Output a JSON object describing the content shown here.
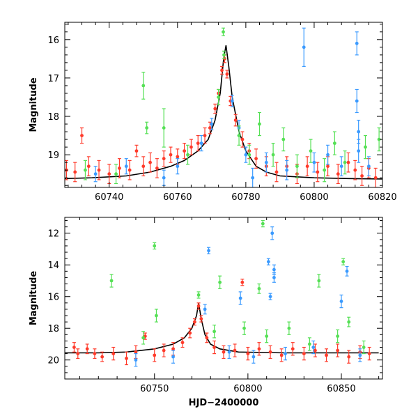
{
  "chart_data": [
    {
      "type": "scatter",
      "title": "",
      "xlabel": "",
      "ylabel": "Magnitude",
      "xlim": [
        60727,
        60820
      ],
      "ylim": [
        19.85,
        15.55
      ],
      "y_inverted": true,
      "grid": false,
      "legend": "none",
      "xticks": [
        60740,
        60760,
        60780,
        60800,
        60820
      ],
      "yticks": [
        16,
        17,
        18,
        19
      ],
      "model_curve": {
        "color": "#000000",
        "x": [
          60727,
          60735,
          60745,
          60752,
          60758,
          60762,
          60766,
          60769,
          60771,
          60772.5,
          60773.5,
          60774.2,
          60775,
          60776,
          60778,
          60780,
          60783,
          60786,
          60790,
          60800,
          60810,
          60820
        ],
        "y": [
          19.62,
          19.6,
          19.55,
          19.45,
          19.3,
          19.15,
          18.9,
          18.6,
          18.1,
          17.4,
          16.5,
          16.15,
          16.7,
          17.5,
          18.4,
          18.9,
          19.3,
          19.45,
          19.55,
          19.6,
          19.62,
          19.63
        ]
      },
      "series": [
        {
          "color": "#ff3a2a",
          "points": [
            {
              "x": 60727.5,
              "y": 19.4,
              "err": 0.25
            },
            {
              "x": 60730,
              "y": 19.45,
              "err": 0.25
            },
            {
              "x": 60732,
              "y": 18.5,
              "err": 0.2
            },
            {
              "x": 60734,
              "y": 19.3,
              "err": 0.25
            },
            {
              "x": 60737,
              "y": 19.4,
              "err": 0.25
            },
            {
              "x": 60740,
              "y": 19.5,
              "err": 0.25
            },
            {
              "x": 60743,
              "y": 19.35,
              "err": 0.25
            },
            {
              "x": 60746,
              "y": 19.4,
              "err": 0.25
            },
            {
              "x": 60748,
              "y": 18.9,
              "err": 0.15
            },
            {
              "x": 60750,
              "y": 19.3,
              "err": 0.25
            },
            {
              "x": 60752,
              "y": 19.2,
              "err": 0.25
            },
            {
              "x": 60754,
              "y": 19.35,
              "err": 0.25
            },
            {
              "x": 60756,
              "y": 19.1,
              "err": 0.2
            },
            {
              "x": 60758,
              "y": 19.0,
              "err": 0.2
            },
            {
              "x": 60760,
              "y": 19.05,
              "err": 0.2
            },
            {
              "x": 60762,
              "y": 18.9,
              "err": 0.2
            },
            {
              "x": 60764,
              "y": 18.8,
              "err": 0.2
            },
            {
              "x": 60766,
              "y": 18.7,
              "err": 0.2
            },
            {
              "x": 60768,
              "y": 18.5,
              "err": 0.2
            },
            {
              "x": 60769.5,
              "y": 18.3,
              "err": 0.15
            },
            {
              "x": 60771,
              "y": 17.8,
              "err": 0.12
            },
            {
              "x": 60772,
              "y": 17.4,
              "err": 0.1
            },
            {
              "x": 60773,
              "y": 16.8,
              "err": 0.1
            },
            {
              "x": 60773.8,
              "y": 16.5,
              "err": 0.1
            },
            {
              "x": 60774.5,
              "y": 16.9,
              "err": 0.1
            },
            {
              "x": 60775.5,
              "y": 17.6,
              "err": 0.12
            },
            {
              "x": 60777,
              "y": 18.1,
              "err": 0.15
            },
            {
              "x": 60779,
              "y": 18.6,
              "err": 0.2
            },
            {
              "x": 60781,
              "y": 18.9,
              "err": 0.2
            },
            {
              "x": 60783,
              "y": 19.1,
              "err": 0.25
            },
            {
              "x": 60786,
              "y": 19.3,
              "err": 0.25
            },
            {
              "x": 60789,
              "y": 19.45,
              "err": 0.25
            },
            {
              "x": 60792,
              "y": 19.3,
              "err": 0.25
            },
            {
              "x": 60795,
              "y": 19.5,
              "err": 0.25
            },
            {
              "x": 60798,
              "y": 19.3,
              "err": 0.25
            },
            {
              "x": 60801,
              "y": 19.45,
              "err": 0.25
            },
            {
              "x": 60804,
              "y": 19.3,
              "err": 0.25
            },
            {
              "x": 60807,
              "y": 19.5,
              "err": 0.25
            },
            {
              "x": 60810,
              "y": 19.2,
              "err": 0.25
            },
            {
              "x": 60812,
              "y": 19.4,
              "err": 0.25
            },
            {
              "x": 60814,
              "y": 19.55,
              "err": 0.25
            },
            {
              "x": 60816,
              "y": 19.35,
              "err": 0.25
            },
            {
              "x": 60818,
              "y": 19.6,
              "err": 0.25
            }
          ]
        },
        {
          "color": "#3a9aff",
          "points": [
            {
              "x": 60736,
              "y": 19.5,
              "err": 0.2
            },
            {
              "x": 60745,
              "y": 19.3,
              "err": 0.2
            },
            {
              "x": 60756,
              "y": 19.6,
              "err": 0.2
            },
            {
              "x": 60760,
              "y": 19.3,
              "err": 0.2
            },
            {
              "x": 60767,
              "y": 18.7,
              "err": 0.2
            },
            {
              "x": 60770,
              "y": 18.2,
              "err": 0.15
            },
            {
              "x": 60776,
              "y": 17.6,
              "err": 0.15
            },
            {
              "x": 60778,
              "y": 18.3,
              "err": 0.2
            },
            {
              "x": 60780,
              "y": 19.0,
              "err": 0.2
            },
            {
              "x": 60782,
              "y": 19.6,
              "err": 0.25
            },
            {
              "x": 60786,
              "y": 19.2,
              "err": 0.25
            },
            {
              "x": 60792,
              "y": 19.4,
              "err": 0.25
            },
            {
              "x": 60797,
              "y": 16.2,
              "err": 0.5
            },
            {
              "x": 60800,
              "y": 19.2,
              "err": 0.25
            },
            {
              "x": 60804,
              "y": 19.0,
              "err": 0.25
            },
            {
              "x": 60808,
              "y": 19.3,
              "err": 0.25
            },
            {
              "x": 60812.5,
              "y": 16.1,
              "err": 0.3
            },
            {
              "x": 60812.5,
              "y": 17.6,
              "err": 0.3
            },
            {
              "x": 60813,
              "y": 18.4,
              "err": 0.3
            },
            {
              "x": 60813,
              "y": 18.9,
              "err": 0.3
            },
            {
              "x": 60816,
              "y": 19.3,
              "err": 0.25
            }
          ]
        },
        {
          "color": "#55e055",
          "points": [
            {
              "x": 60733,
              "y": 19.4,
              "err": 0.25
            },
            {
              "x": 60742,
              "y": 19.5,
              "err": 0.25
            },
            {
              "x": 60750,
              "y": 17.2,
              "err": 0.35
            },
            {
              "x": 60751,
              "y": 18.3,
              "err": 0.15
            },
            {
              "x": 60756,
              "y": 18.3,
              "err": 0.5
            },
            {
              "x": 60763,
              "y": 19.0,
              "err": 0.25
            },
            {
              "x": 60772,
              "y": 17.5,
              "err": 0.2
            },
            {
              "x": 60773.4,
              "y": 15.8,
              "err": 0.1
            },
            {
              "x": 60773.6,
              "y": 16.4,
              "err": 0.1
            },
            {
              "x": 60778,
              "y": 18.5,
              "err": 0.25
            },
            {
              "x": 60781,
              "y": 19.0,
              "err": 0.25
            },
            {
              "x": 60784,
              "y": 18.2,
              "err": 0.3
            },
            {
              "x": 60788,
              "y": 19.0,
              "err": 0.3
            },
            {
              "x": 60791,
              "y": 18.6,
              "err": 0.3
            },
            {
              "x": 60795,
              "y": 19.3,
              "err": 0.3
            },
            {
              "x": 60799,
              "y": 18.9,
              "err": 0.3
            },
            {
              "x": 60803,
              "y": 19.4,
              "err": 0.3
            },
            {
              "x": 60806,
              "y": 18.7,
              "err": 0.3
            },
            {
              "x": 60809,
              "y": 19.2,
              "err": 0.3
            },
            {
              "x": 60815,
              "y": 18.8,
              "err": 0.3
            },
            {
              "x": 60819,
              "y": 18.6,
              "err": 0.3
            }
          ]
        }
      ]
    },
    {
      "type": "scatter",
      "title": "",
      "xlabel": "HJD−2400000",
      "ylabel": "Magnitude",
      "xlim": [
        60702,
        60872
      ],
      "ylim": [
        21.2,
        11.0
      ],
      "y_inverted": true,
      "grid": false,
      "legend": "none",
      "xticks": [
        60750,
        60800,
        60850
      ],
      "yticks": [
        12,
        14,
        16,
        18,
        20
      ],
      "model_curve": {
        "color": "#000000",
        "x": [
          60702,
          60720,
          60735,
          60750,
          60760,
          60766,
          60770,
          60772.5,
          60773.6,
          60775,
          60777,
          60780,
          60785,
          60795,
          60820,
          60870
        ],
        "y": [
          19.55,
          19.55,
          19.5,
          19.3,
          19.0,
          18.6,
          18.0,
          17.2,
          16.4,
          17.4,
          18.4,
          19.0,
          19.3,
          19.5,
          19.55,
          19.55
        ]
      },
      "series": [
        {
          "color": "#ff3a2a",
          "points": [
            {
              "x": 60707,
              "y": 19.2,
              "err": 0.3
            },
            {
              "x": 60709,
              "y": 19.6,
              "err": 0.3
            },
            {
              "x": 60714,
              "y": 19.3,
              "err": 0.3
            },
            {
              "x": 60718,
              "y": 19.6,
              "err": 0.3
            },
            {
              "x": 60722,
              "y": 19.8,
              "err": 0.3
            },
            {
              "x": 60728,
              "y": 19.6,
              "err": 0.4
            },
            {
              "x": 60735,
              "y": 19.9,
              "err": 0.4
            },
            {
              "x": 60740,
              "y": 19.5,
              "err": 0.4
            },
            {
              "x": 60745,
              "y": 18.5,
              "err": 0.2
            },
            {
              "x": 60750,
              "y": 19.7,
              "err": 0.4
            },
            {
              "x": 60755,
              "y": 19.4,
              "err": 0.4
            },
            {
              "x": 60760,
              "y": 19.3,
              "err": 0.4
            },
            {
              "x": 60765,
              "y": 18.9,
              "err": 0.3
            },
            {
              "x": 60769,
              "y": 18.3,
              "err": 0.3
            },
            {
              "x": 60771.5,
              "y": 17.6,
              "err": 0.2
            },
            {
              "x": 60773.6,
              "y": 16.6,
              "err": 0.2
            },
            {
              "x": 60775,
              "y": 17.4,
              "err": 0.2
            },
            {
              "x": 60778,
              "y": 18.6,
              "err": 0.3
            },
            {
              "x": 60782,
              "y": 19.2,
              "err": 0.4
            },
            {
              "x": 60787,
              "y": 19.5,
              "err": 0.4
            },
            {
              "x": 60793,
              "y": 19.4,
              "err": 0.4
            },
            {
              "x": 60797,
              "y": 15.1,
              "err": 0.2
            },
            {
              "x": 60800,
              "y": 19.6,
              "err": 0.4
            },
            {
              "x": 60806,
              "y": 19.3,
              "err": 0.4
            },
            {
              "x": 60812,
              "y": 19.5,
              "err": 0.4
            },
            {
              "x": 60818,
              "y": 19.7,
              "err": 0.4
            },
            {
              "x": 60824,
              "y": 19.3,
              "err": 0.4
            },
            {
              "x": 60830,
              "y": 19.6,
              "err": 0.4
            },
            {
              "x": 60836,
              "y": 19.4,
              "err": 0.4
            },
            {
              "x": 60842,
              "y": 19.7,
              "err": 0.4
            },
            {
              "x": 60848,
              "y": 19.4,
              "err": 0.4
            },
            {
              "x": 60854,
              "y": 19.8,
              "err": 0.4
            },
            {
              "x": 60860,
              "y": 19.5,
              "err": 0.4
            },
            {
              "x": 60865,
              "y": 19.6,
              "err": 0.4
            }
          ]
        },
        {
          "color": "#3a9aff",
          "points": [
            {
              "x": 60740,
              "y": 20.0,
              "err": 0.4
            },
            {
              "x": 60760,
              "y": 19.8,
              "err": 0.4
            },
            {
              "x": 60777,
              "y": 16.8,
              "err": 0.3
            },
            {
              "x": 60779,
              "y": 13.1,
              "err": 0.2
            },
            {
              "x": 60790,
              "y": 19.5,
              "err": 0.4
            },
            {
              "x": 60796,
              "y": 16.1,
              "err": 0.4
            },
            {
              "x": 60803,
              "y": 19.8,
              "err": 0.4
            },
            {
              "x": 60811,
              "y": 13.8,
              "err": 0.2
            },
            {
              "x": 60813,
              "y": 12.0,
              "err": 0.4
            },
            {
              "x": 60814,
              "y": 14.3,
              "err": 0.3
            },
            {
              "x": 60814,
              "y": 14.8,
              "err": 0.3
            },
            {
              "x": 60812,
              "y": 16.0,
              "err": 0.2
            },
            {
              "x": 60820,
              "y": 19.6,
              "err": 0.4
            },
            {
              "x": 60835,
              "y": 19.2,
              "err": 0.4
            },
            {
              "x": 60853,
              "y": 14.4,
              "err": 0.3
            },
            {
              "x": 60850,
              "y": 16.3,
              "err": 0.4
            },
            {
              "x": 60860,
              "y": 19.7,
              "err": 0.4
            }
          ]
        },
        {
          "color": "#55e055",
          "points": [
            {
              "x": 60727,
              "y": 15.0,
              "err": 0.4
            },
            {
              "x": 60744,
              "y": 18.6,
              "err": 0.4
            },
            {
              "x": 60750,
              "y": 12.8,
              "err": 0.2
            },
            {
              "x": 60751,
              "y": 17.2,
              "err": 0.4
            },
            {
              "x": 60773.6,
              "y": 15.9,
              "err": 0.2
            },
            {
              "x": 60785,
              "y": 15.1,
              "err": 0.4
            },
            {
              "x": 60782,
              "y": 18.2,
              "err": 0.4
            },
            {
              "x": 60798,
              "y": 18.0,
              "err": 0.4
            },
            {
              "x": 60806,
              "y": 15.5,
              "err": 0.3
            },
            {
              "x": 60808,
              "y": 11.4,
              "err": 0.2
            },
            {
              "x": 60810,
              "y": 18.5,
              "err": 0.4
            },
            {
              "x": 60822,
              "y": 18.0,
              "err": 0.4
            },
            {
              "x": 60833,
              "y": 19.0,
              "err": 0.4
            },
            {
              "x": 60838,
              "y": 15.0,
              "err": 0.4
            },
            {
              "x": 60848,
              "y": 18.5,
              "err": 0.4
            },
            {
              "x": 60851,
              "y": 13.8,
              "err": 0.2
            },
            {
              "x": 60854,
              "y": 17.6,
              "err": 0.3
            },
            {
              "x": 60862,
              "y": 19.2,
              "err": 0.4
            }
          ]
        }
      ]
    }
  ]
}
